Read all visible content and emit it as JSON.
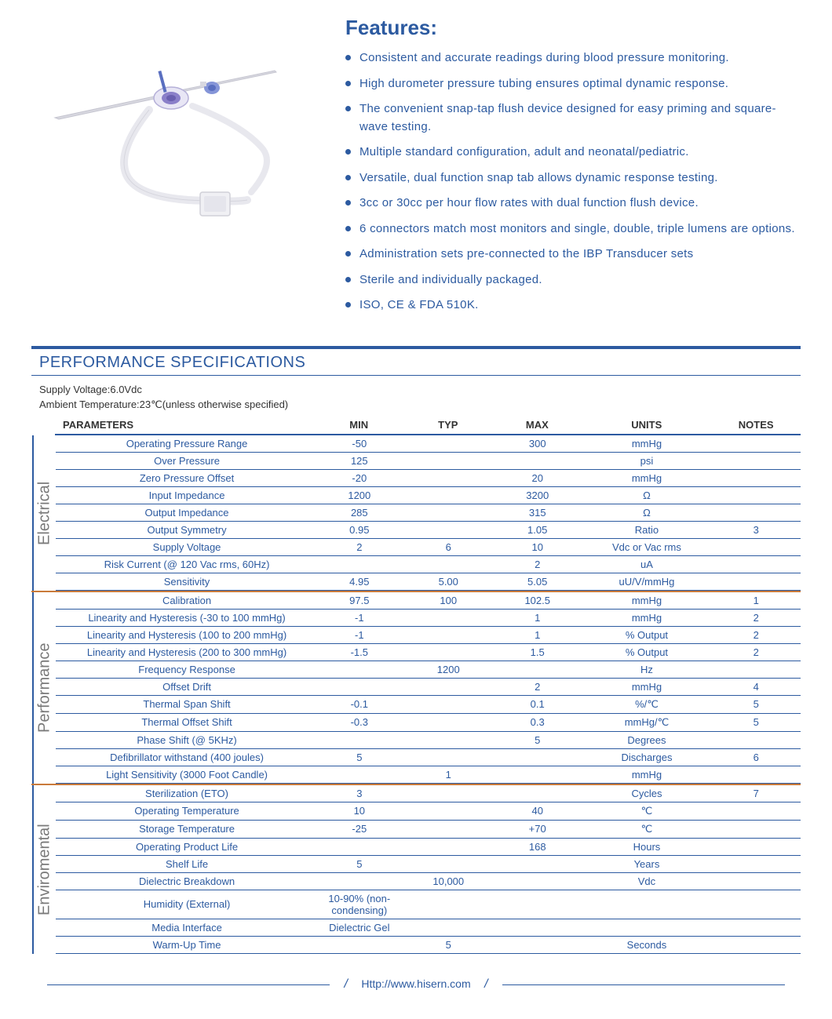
{
  "colors": {
    "primary": "#2c5aa0",
    "accent": "#c97a3a",
    "text": "#333333",
    "muted": "#7a7a7a",
    "background": "#ffffff"
  },
  "features": {
    "title": "Features:",
    "items": [
      "Consistent and accurate readings during blood pressure monitoring.",
      "High durometer pressure tubing ensures optimal dynamic response.",
      "The convenient snap-tap flush device designed for easy priming and square-wave testing.",
      "Multiple standard configuration, adult and neonatal/pediatric.",
      "Versatile, dual function snap tab allows dynamic response testing.",
      "3cc or 30cc per hour flow rates with dual function flush device.",
      "6 connectors match most monitors and single, double, triple lumens are options.",
      "Administration sets pre-connected to the IBP Transducer sets",
      "Sterile and individually packaged.",
      "ISO, CE & FDA 510K."
    ]
  },
  "specs": {
    "title": "PERFORMANCE SPECIFICATIONS",
    "supply_voltage": "Supply Voltage:6.0Vdc",
    "ambient_temp": "Ambient Temperature:23℃(unless otherwise specified)",
    "columns": [
      "PARAMETERS",
      "MIN",
      "TYP",
      "MAX",
      "UNITS",
      "NOTES"
    ],
    "groups": [
      {
        "label": "Electrical",
        "rows": [
          {
            "param": "Operating Pressure Range",
            "min": "-50",
            "typ": "",
            "max": "300",
            "units": "mmHg",
            "notes": ""
          },
          {
            "param": "Over  Pressure",
            "min": "125",
            "typ": "",
            "max": "",
            "units": "psi",
            "notes": ""
          },
          {
            "param": "Zero Pressure Offset",
            "min": "-20",
            "typ": "",
            "max": "20",
            "units": "mmHg",
            "notes": ""
          },
          {
            "param": "Input Impedance",
            "min": "1200",
            "typ": "",
            "max": "3200",
            "units": "Ω",
            "notes": ""
          },
          {
            "param": "Output Impedance",
            "min": "285",
            "typ": "",
            "max": "315",
            "units": "Ω",
            "notes": ""
          },
          {
            "param": "Output Symmetry",
            "min": "0.95",
            "typ": "",
            "max": "1.05",
            "units": "Ratio",
            "notes": "3"
          },
          {
            "param": "Supply Voltage",
            "min": "2",
            "typ": "6",
            "max": "10",
            "units": "Vdc or Vac rms",
            "notes": ""
          },
          {
            "param": "Risk Current (@ 120 Vac rms, 60Hz)",
            "min": "",
            "typ": "",
            "max": "2",
            "units": "uA",
            "notes": ""
          },
          {
            "param": "Sensitivity",
            "min": "4.95",
            "typ": "5.00",
            "max": "5.05",
            "units": "uU/V/mmHg",
            "notes": ""
          }
        ]
      },
      {
        "label": "Performance",
        "rows": [
          {
            "param": "Calibration",
            "min": "97.5",
            "typ": "100",
            "max": "102.5",
            "units": "mmHg",
            "notes": "1"
          },
          {
            "param": "Linearity and Hysteresis (-30 to 100 mmHg)",
            "min": "-1",
            "typ": "",
            "max": "1",
            "units": "mmHg",
            "notes": "2"
          },
          {
            "param": "Linearity and Hysteresis (100 to 200 mmHg)",
            "min": "-1",
            "typ": "",
            "max": "1",
            "units": "% Output",
            "notes": "2"
          },
          {
            "param": "Linearity and Hysteresis (200 to 300 mmHg)",
            "min": "-1.5",
            "typ": "",
            "max": "1.5",
            "units": "% Output",
            "notes": "2"
          },
          {
            "param": "Frequency Response",
            "min": "",
            "typ": "1200",
            "max": "",
            "units": "Hz",
            "notes": ""
          },
          {
            "param": "Offset Drift",
            "min": "",
            "typ": "",
            "max": "2",
            "units": "mmHg",
            "notes": "4"
          },
          {
            "param": "Thermal Span Shift",
            "min": "-0.1",
            "typ": "",
            "max": "0.1",
            "units": "%/℃",
            "notes": "5"
          },
          {
            "param": "Thermal Offset Shift",
            "min": "-0.3",
            "typ": "",
            "max": "0.3",
            "units": "mmHg/℃",
            "notes": "5"
          },
          {
            "param": "Phase Shift (@ 5KHz)",
            "min": "",
            "typ": "",
            "max": "5",
            "units": "Degrees",
            "notes": ""
          },
          {
            "param": "Defibrillator withstand (400 joules)",
            "min": "5",
            "typ": "",
            "max": "",
            "units": "Discharges",
            "notes": "6"
          },
          {
            "param": "Light Sensitivity (3000 Foot Candle)",
            "min": "",
            "typ": "1",
            "max": "",
            "units": "mmHg",
            "notes": ""
          }
        ]
      },
      {
        "label": "Enviromental",
        "rows": [
          {
            "param": "Sterilization (ETO)",
            "min": "3",
            "typ": "",
            "max": "",
            "units": "Cycles",
            "notes": "7"
          },
          {
            "param": "Operating Temperature",
            "min": "10",
            "typ": "",
            "max": "40",
            "units": "℃",
            "notes": ""
          },
          {
            "param": "Storage Temperature",
            "min": "-25",
            "typ": "",
            "max": "+70",
            "units": "℃",
            "notes": ""
          },
          {
            "param": "Operating Product Life",
            "min": "",
            "typ": "",
            "max": "168",
            "units": "Hours",
            "notes": ""
          },
          {
            "param": "Shelf Life",
            "min": "5",
            "typ": "",
            "max": "",
            "units": "Years",
            "notes": ""
          },
          {
            "param": "Dielectric Breakdown",
            "min": "",
            "typ": "10,000",
            "max": "",
            "units": "Vdc",
            "notes": ""
          },
          {
            "param": "Humidity (External)",
            "min": "10-90% (non-condensing)",
            "typ": "",
            "max": "",
            "units": "",
            "notes": ""
          },
          {
            "param": "Media Interface",
            "min": "Dielectric Gel",
            "typ": "",
            "max": "",
            "units": "",
            "notes": ""
          },
          {
            "param": "Warm-Up Time",
            "min": "",
            "typ": "5",
            "max": "",
            "units": "Seconds",
            "notes": ""
          }
        ]
      }
    ]
  },
  "footer": {
    "url": "Http://www.hisern.com"
  }
}
